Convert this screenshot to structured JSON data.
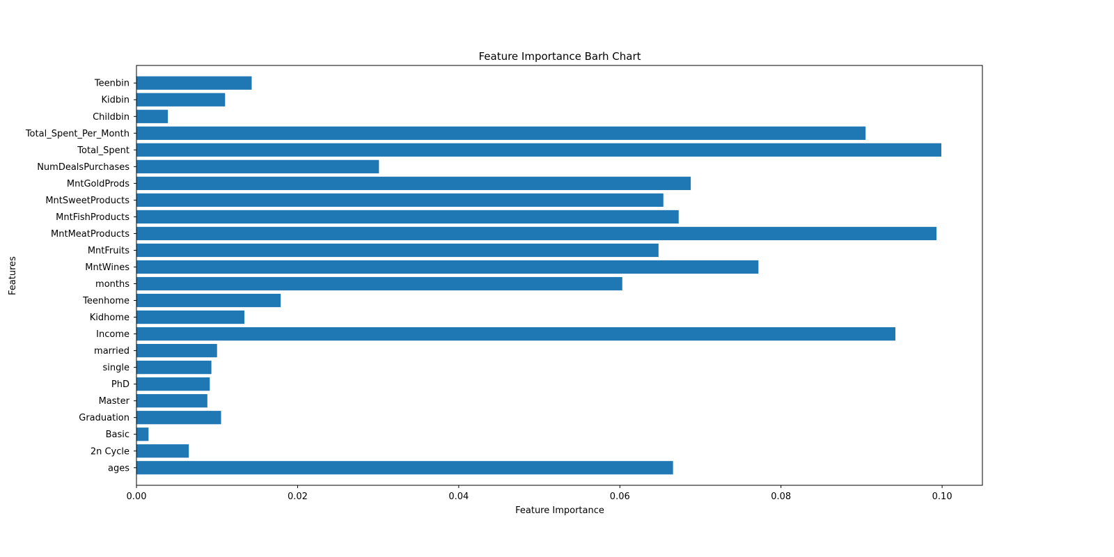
{
  "chart_data": {
    "type": "bar",
    "orientation": "horizontal",
    "title": "Feature Importance Barh Chart",
    "xlabel": "Feature Importance",
    "ylabel": "Features",
    "xlim": [
      0,
      0.105
    ],
    "xticks": [
      0,
      0.02,
      0.04,
      0.06,
      0.08,
      0.1
    ],
    "xtick_labels": [
      "0.00",
      "0.02",
      "0.04",
      "0.06",
      "0.08",
      "0.10"
    ],
    "grid": false,
    "bar_color": "#1f77b4",
    "categories": [
      "ages",
      "2n Cycle",
      "Basic",
      "Graduation",
      "Master",
      "PhD",
      "single",
      "married",
      "Income",
      "Kidhome",
      "Teenhome",
      "months",
      "MntWines",
      "MntFruits",
      "MntMeatProducts",
      "MntFishProducts",
      "MntSweetProducts",
      "MntGoldProds",
      "NumDealsPurchases",
      "Total_Spent",
      "Total_Spent_Per_Month",
      "Childbin",
      "Kidbin",
      "Teenbin"
    ],
    "values": [
      0.0666,
      0.0065,
      0.0015,
      0.0105,
      0.0088,
      0.0091,
      0.0093,
      0.01,
      0.0942,
      0.0134,
      0.0179,
      0.0603,
      0.0772,
      0.0648,
      0.0993,
      0.0673,
      0.0654,
      0.0688,
      0.0301,
      0.0999,
      0.0905,
      0.0039,
      0.011,
      0.0143
    ]
  }
}
